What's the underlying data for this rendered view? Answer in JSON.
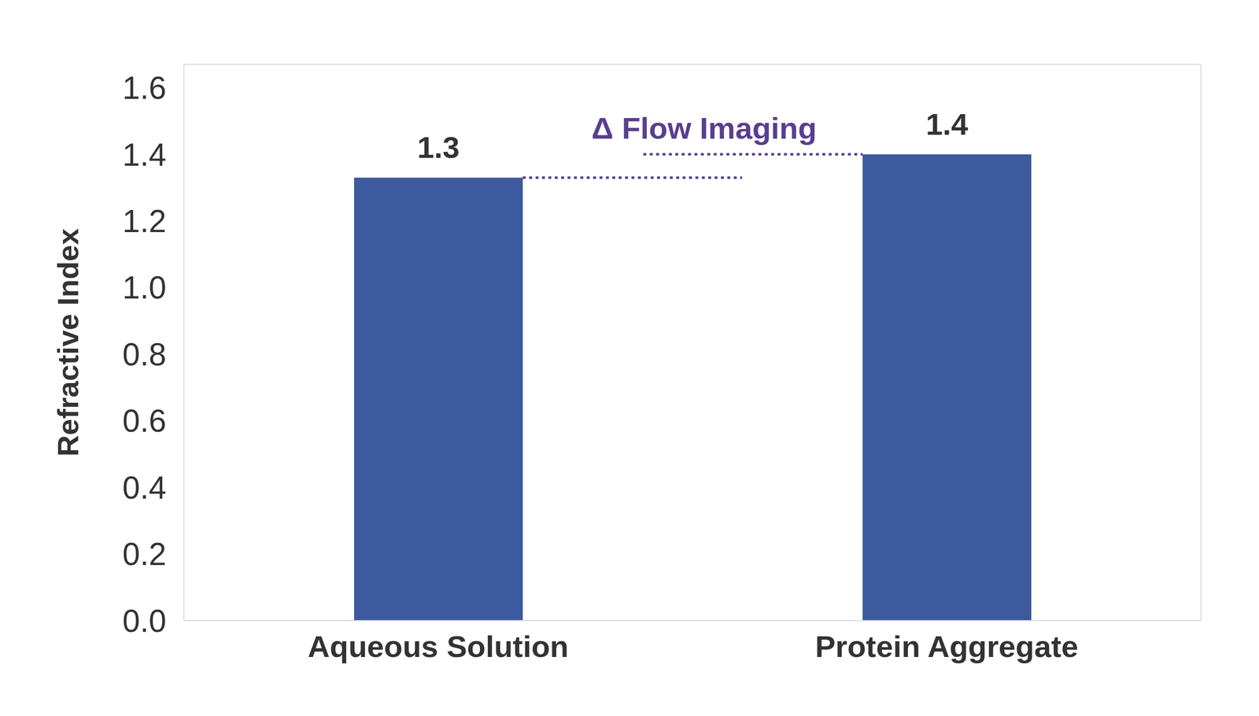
{
  "chart_data": {
    "type": "bar",
    "y_label": "Refractive Index",
    "annotation": "Δ Flow Imaging",
    "categories": [
      "Aqueous Solution",
      "Protein Aggregate"
    ],
    "values": [
      1.33,
      1.4
    ],
    "value_labels": [
      "1.3",
      "1.4"
    ],
    "color": "#3d5a9e",
    "ylim": [
      0,
      1.67
    ],
    "yticks": [
      {
        "value": 0,
        "label": "0.0"
      },
      0.2,
      0.4,
      0.6,
      0.8,
      {
        "value": 1,
        "label": "1.0"
      },
      1.2,
      1.4,
      1.6
    ],
    "grid": false,
    "data_labels": true
  }
}
